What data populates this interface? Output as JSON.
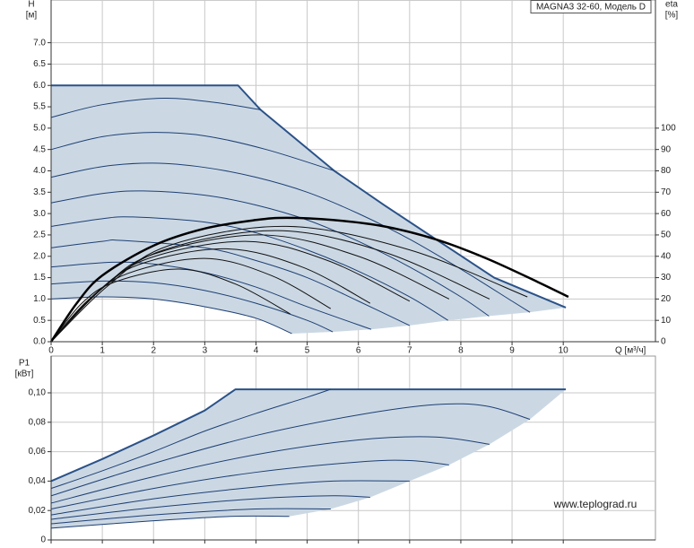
{
  "chart_data": [
    {
      "type": "line",
      "title": "MAGNA3 32-60, Модель D",
      "y_label": "H",
      "y_unit": "[м]",
      "y2_label": "eta",
      "y2_unit": "[%]",
      "x_label": "Q [м³/ч]",
      "xlim": [
        0,
        11.8
      ],
      "ylim": [
        0,
        8
      ],
      "y2lim": [
        0,
        160
      ],
      "xticks": [
        0,
        1,
        2,
        3,
        4,
        5,
        6,
        7,
        8,
        9,
        10
      ],
      "xtick_labels": true,
      "yticks": [
        {
          "value": 0,
          "label": "0.0"
        },
        0.5,
        {
          "value": 1,
          "label": "1.0"
        },
        1.5,
        {
          "value": 2,
          "label": "2.0"
        },
        2.5,
        {
          "value": 3,
          "label": "3.0"
        },
        3.5,
        {
          "value": 4,
          "label": "4.0"
        },
        4.5,
        {
          "value": 5,
          "label": "5.0"
        },
        5.5,
        {
          "value": 6,
          "label": "6.0"
        },
        6.5,
        {
          "value": 7,
          "label": "7.0"
        }
      ],
      "y2ticks": [
        0,
        10,
        20,
        30,
        40,
        50,
        60,
        70,
        80,
        90,
        100
      ],
      "grid": true,
      "range": {
        "color": "#cbd8e4",
        "x": [
          0,
          3.65,
          4.09,
          5.53,
          6.5,
          7.6,
          8.65,
          10.05,
          9.35,
          8.55,
          7.75,
          7.0,
          6.25,
          5.5,
          4.7,
          4,
          3,
          2,
          1,
          0
        ],
        "values": [
          6,
          6,
          5.43,
          4.0,
          3.2,
          2.33,
          1.5,
          0.8,
          0.69,
          0.6,
          0.5,
          0.38,
          0.29,
          0.23,
          0.19,
          0.55,
          0.82,
          1.0,
          1.05,
          1.0
        ]
      },
      "series": [
        {
          "color": "#2b5288",
          "width": 2,
          "smooth": false,
          "x": [
            0,
            3.65,
            4.09,
            5.53,
            6.5,
            7.6,
            8.65,
            10.05
          ],
          "values": [
            6,
            6,
            5.43,
            4.0,
            3.2,
            2.33,
            1.5,
            0.8
          ]
        },
        {
          "color": "#1e3f73",
          "width": 1,
          "smooth": true,
          "x": [
            0,
            1,
            2.2,
            3.2,
            4.09
          ],
          "values": [
            5.25,
            5.55,
            5.7,
            5.6,
            5.43
          ]
        },
        {
          "color": "#1e3f73",
          "width": 1,
          "smooth": true,
          "x": [
            0,
            1,
            2,
            3,
            4.2,
            5.53
          ],
          "values": [
            4.5,
            4.8,
            4.9,
            4.82,
            4.5,
            4.0
          ]
        },
        {
          "color": "#1e3f73",
          "width": 1,
          "smooth": true,
          "x": [
            0,
            1,
            2,
            3,
            4,
            5,
            6,
            7,
            8,
            9,
            9.35
          ],
          "values": [
            3.85,
            4.1,
            4.18,
            4.08,
            3.85,
            3.5,
            3.0,
            2.4,
            1.7,
            0.95,
            0.69
          ]
        },
        {
          "color": "#1e3f73",
          "width": 1,
          "smooth": true,
          "x": [
            0,
            1,
            1.8,
            3,
            4,
            5,
            6,
            7,
            8,
            8.55
          ],
          "values": [
            3.25,
            3.47,
            3.53,
            3.43,
            3.2,
            2.85,
            2.35,
            1.75,
            1.05,
            0.6
          ]
        },
        {
          "color": "#1e3f73",
          "width": 1,
          "smooth": true,
          "x": [
            0,
            1,
            1.6,
            3,
            4,
            5,
            6,
            7,
            7.75
          ],
          "values": [
            2.7,
            2.88,
            2.92,
            2.8,
            2.55,
            2.15,
            1.65,
            1.05,
            0.5
          ]
        },
        {
          "color": "#1e3f73",
          "width": 1,
          "smooth": true,
          "x": [
            0,
            1,
            1.4,
            3,
            4,
            5,
            6,
            7
          ],
          "values": [
            2.2,
            2.35,
            2.37,
            2.2,
            1.9,
            1.5,
            0.95,
            0.38
          ]
        },
        {
          "color": "#1e3f73",
          "width": 1,
          "smooth": true,
          "x": [
            0,
            1.2,
            2,
            3,
            4,
            5,
            6.25
          ],
          "values": [
            1.75,
            1.86,
            1.82,
            1.62,
            1.28,
            0.82,
            0.29
          ]
        },
        {
          "color": "#1e3f73",
          "width": 1,
          "smooth": true,
          "x": [
            0,
            1,
            2,
            3,
            4,
            5,
            5.5
          ],
          "values": [
            1.35,
            1.42,
            1.38,
            1.2,
            0.9,
            0.5,
            0.23
          ]
        },
        {
          "color": "#1e3f73",
          "width": 1,
          "smooth": true,
          "x": [
            0,
            1,
            2,
            3,
            4,
            4.7
          ],
          "values": [
            1.0,
            1.05,
            1.0,
            0.82,
            0.55,
            0.19
          ]
        },
        {
          "color": "#111111",
          "width": 1,
          "smooth": true,
          "axis": "y2",
          "x": [
            0,
            0.6,
            1.25,
            2.5,
            3.6,
            4.67
          ],
          "values": [
            0,
            18,
            28,
            34,
            27,
            13
          ]
        },
        {
          "color": "#111111",
          "width": 1,
          "smooth": true,
          "axis": "y2",
          "x": [
            0,
            0.7,
            1.5,
            3.0,
            4.3,
            5.46
          ],
          "values": [
            0,
            19,
            32,
            39,
            31,
            15.5
          ]
        },
        {
          "color": "#111111",
          "width": 1,
          "smooth": true,
          "axis": "y2",
          "x": [
            0,
            0.8,
            1.7,
            3.4,
            4.9,
            6.23
          ],
          "values": [
            0,
            21,
            36,
            43.5,
            35,
            18
          ]
        },
        {
          "color": "#111111",
          "width": 1,
          "smooth": true,
          "axis": "y2",
          "x": [
            0,
            0.9,
            1.9,
            3.8,
            5.4,
            7.0
          ],
          "values": [
            0,
            23,
            39,
            47,
            38,
            19
          ]
        },
        {
          "color": "#111111",
          "width": 1,
          "smooth": true,
          "axis": "y2",
          "x": [
            0,
            1.0,
            2.0,
            4.1,
            6.0,
            7.77
          ],
          "values": [
            0,
            25,
            41,
            50,
            40,
            20
          ]
        },
        {
          "color": "#111111",
          "width": 1,
          "smooth": true,
          "axis": "y2",
          "x": [
            0,
            1.0,
            2.2,
            4.4,
            6.5,
            8.56
          ],
          "values": [
            0,
            25,
            43,
            52,
            42,
            20
          ]
        },
        {
          "color": "#111111",
          "width": 1,
          "smooth": true,
          "axis": "y2",
          "x": [
            0,
            1.1,
            2.3,
            4.6,
            7.0,
            9.3
          ],
          "values": [
            0,
            26,
            45,
            54,
            43,
            21
          ]
        },
        {
          "color": "#000000",
          "width": 2.5,
          "smooth": true,
          "axis": "y2",
          "x": [
            0,
            0.5,
            1,
            2,
            3,
            4,
            4.6,
            5.5,
            6.5,
            7.5,
            8.5,
            9.5,
            10.1
          ],
          "values": [
            0,
            18,
            31,
            45,
            53,
            57,
            58,
            57,
            54,
            48,
            39,
            28,
            21
          ]
        }
      ]
    },
    {
      "type": "line",
      "y_label": "P1",
      "y_unit": "[кВт]",
      "xlim": [
        0,
        11.8
      ],
      "ylim": [
        0,
        0.125
      ],
      "xticks": [
        0,
        1,
        2,
        3,
        4,
        5,
        6,
        7,
        8,
        9,
        10
      ],
      "xtick_labels": false,
      "yticks": [
        0,
        {
          "value": 0.02,
          "label": "0,02"
        },
        {
          "value": 0.04,
          "label": "0,04"
        },
        {
          "value": 0.06,
          "label": "0,06"
        },
        {
          "value": 0.08,
          "label": "0,08"
        },
        {
          "value": 0.1,
          "label": "0,10"
        }
      ],
      "grid": true,
      "range": {
        "color": "#cbd8e4",
        "x": [
          0,
          1,
          2,
          3,
          3.6,
          10.05,
          9.35,
          8.56,
          7.77,
          7.0,
          6.23,
          5.46,
          4.65,
          3.5,
          2,
          0
        ],
        "values": [
          0.04,
          0.055,
          0.071,
          0.088,
          0.1024,
          0.1024,
          0.082,
          0.065,
          0.051,
          0.04,
          0.029,
          0.021,
          0.016,
          0.016,
          0.013,
          0.008
        ]
      },
      "series": [
        {
          "color": "#2b5288",
          "width": 2,
          "smooth": false,
          "x": [
            0,
            1,
            2,
            3,
            3.6,
            10.05
          ],
          "values": [
            0.04,
            0.055,
            0.071,
            0.088,
            0.1024,
            0.1024
          ]
        },
        {
          "color": "#1e3f73",
          "width": 1,
          "smooth": true,
          "x": [
            0,
            1,
            2,
            3,
            4,
            5,
            5.46
          ],
          "values": [
            0.035,
            0.047,
            0.06,
            0.074,
            0.086,
            0.097,
            0.1024
          ]
        },
        {
          "color": "#1e3f73",
          "width": 1,
          "smooth": true,
          "x": [
            0,
            2,
            4,
            6,
            7.5,
            8.5,
            9.35
          ],
          "values": [
            0.03,
            0.052,
            0.071,
            0.085,
            0.092,
            0.091,
            0.082
          ]
        },
        {
          "color": "#1e3f73",
          "width": 1,
          "smooth": true,
          "x": [
            0,
            2,
            4,
            6,
            7.5,
            8.56
          ],
          "values": [
            0.025,
            0.043,
            0.058,
            0.068,
            0.07,
            0.065
          ]
        },
        {
          "color": "#1e3f73",
          "width": 1,
          "smooth": true,
          "x": [
            0,
            2,
            4,
            6,
            7.0,
            7.77
          ],
          "values": [
            0.021,
            0.035,
            0.046,
            0.053,
            0.054,
            0.051
          ]
        },
        {
          "color": "#1e3f73",
          "width": 1,
          "smooth": true,
          "x": [
            0,
            2,
            4,
            5.5,
            7.0
          ],
          "values": [
            0.017,
            0.028,
            0.036,
            0.04,
            0.04
          ]
        },
        {
          "color": "#1e3f73",
          "width": 1,
          "smooth": true,
          "x": [
            0,
            2,
            4,
            5.5,
            6.23
          ],
          "values": [
            0.014,
            0.022,
            0.028,
            0.03,
            0.029
          ]
        },
        {
          "color": "#1e3f73",
          "width": 1,
          "smooth": true,
          "x": [
            0,
            2,
            4,
            5.46
          ],
          "values": [
            0.011,
            0.017,
            0.021,
            0.021
          ]
        },
        {
          "color": "#1e3f73",
          "width": 1,
          "smooth": true,
          "x": [
            0,
            2,
            3.5,
            4.65
          ],
          "values": [
            0.008,
            0.013,
            0.016,
            0.016
          ]
        }
      ]
    }
  ],
  "watermark": "www.teplograd.ru"
}
